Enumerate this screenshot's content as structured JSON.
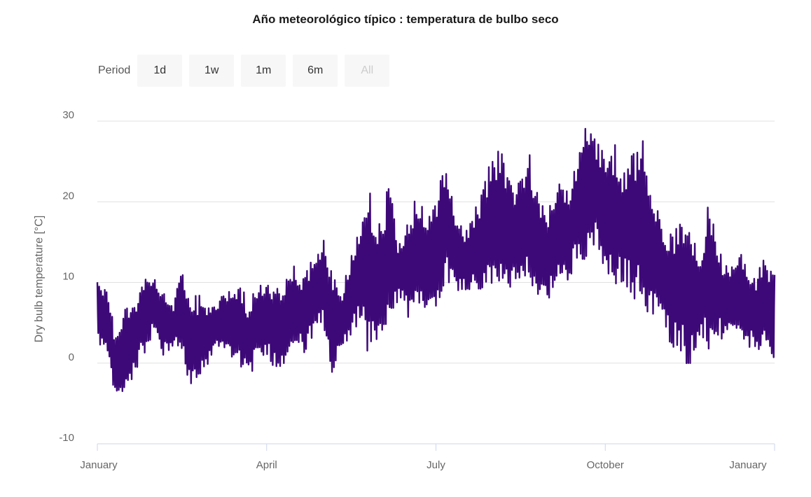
{
  "chart_data": {
    "type": "line",
    "title": "Año meteorológico típico : temperatura de bulbo seco",
    "xlabel": "",
    "ylabel": "Dry bulb temperature [°C]",
    "ylim": [
      -10,
      30
    ],
    "yticks": [
      "30",
      "20",
      "10",
      "0",
      "-10"
    ],
    "ytick_values": [
      30,
      20,
      10,
      0,
      -10
    ],
    "xtick_labels": [
      "January",
      "April",
      "July",
      "October",
      "January"
    ],
    "xtick_months": [
      0,
      3,
      6,
      9,
      12
    ],
    "grid": true,
    "legend": "none",
    "series": [
      {
        "name": "Dry bulb temperature",
        "color": "#3d0878",
        "resolution": "5-day min/max envelope (estimated), Jan 1 to Dec 31",
        "max": [
          11.5,
          9,
          4,
          7.5,
          8,
          10.5,
          11,
          9,
          7,
          12,
          8,
          9,
          7,
          8,
          9.5,
          10.5,
          8,
          9.5,
          10,
          9,
          11,
          12.5,
          11,
          14,
          15.5,
          11,
          9,
          14,
          17.5,
          22,
          18,
          23,
          15,
          18,
          22,
          17,
          21,
          24.5,
          19,
          16,
          19,
          22,
          27,
          26,
          22,
          25,
          26,
          20,
          19,
          23,
          22,
          25,
          30,
          29,
          26,
          28,
          24,
          26.5,
          28.5,
          21.5,
          18,
          16,
          17.5,
          18,
          14,
          20.5,
          14.5,
          12,
          14.5,
          13,
          11,
          13.5,
          13
        ],
        "min": [
          2.5,
          0.5,
          -5.5,
          -4,
          -1,
          1,
          4,
          0.5,
          2,
          1,
          -4,
          -2,
          0.5,
          2,
          1,
          0,
          -2,
          0,
          1,
          -1,
          0,
          2,
          1,
          3,
          4,
          -2.5,
          2,
          3,
          5,
          0,
          2,
          3,
          8,
          5.5,
          5,
          7,
          6,
          10.5,
          9,
          9,
          9,
          8,
          9,
          10,
          8.5,
          8,
          10,
          7.5,
          8,
          9,
          10,
          12.5,
          13,
          14,
          9.5,
          9,
          10,
          8,
          7,
          5,
          5.5,
          2,
          1.5,
          -1,
          3,
          1,
          3,
          2.5,
          3,
          1,
          2,
          1,
          -1.5
        ]
      }
    ]
  },
  "range_selector": {
    "label": "Period",
    "buttons": [
      {
        "label": "1d",
        "disabled": false
      },
      {
        "label": "1w",
        "disabled": false
      },
      {
        "label": "1m",
        "disabled": false
      },
      {
        "label": "6m",
        "disabled": false
      },
      {
        "label": "All",
        "disabled": true
      }
    ]
  }
}
